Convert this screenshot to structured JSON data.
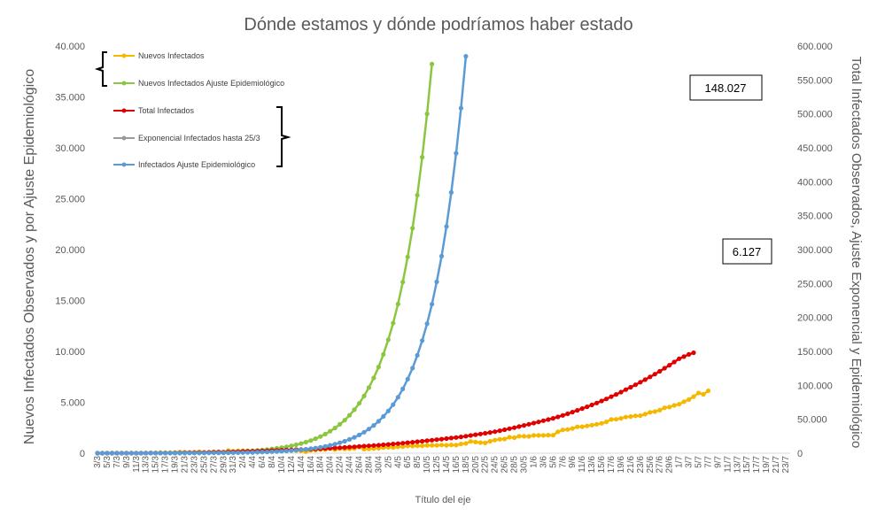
{
  "chart_data": {
    "type": "line",
    "title": "Dónde estamos y dónde podríamos haber estado",
    "xlabel": "Título del eje",
    "ylabel_left": "Nuevos Infectados Observados y por Ajuste Epidemiológico",
    "ylabel_right": "Total Infectados Observados, Ajuste Exponencial y Epidemiológico",
    "ylim_left": [
      0,
      40000
    ],
    "ylim_right": [
      0,
      600000
    ],
    "left_ticks": [
      "0",
      "5.000",
      "10.000",
      "15.000",
      "20.000",
      "25.000",
      "30.000",
      "35.000",
      "40.000"
    ],
    "right_ticks": [
      "0",
      "50.000",
      "100.000",
      "150.000",
      "200.000",
      "250.000",
      "300.000",
      "350.000",
      "400.000",
      "450.000",
      "500.000",
      "550.000",
      "600.000"
    ],
    "x_tick_labels": [
      "3/3",
      "5/3",
      "7/3",
      "9/3",
      "11/3",
      "13/3",
      "15/3",
      "17/3",
      "19/3",
      "21/3",
      "23/3",
      "25/3",
      "27/3",
      "29/3",
      "31/3",
      "2/4",
      "4/4",
      "6/4",
      "8/4",
      "10/4",
      "12/4",
      "14/4",
      "16/4",
      "18/4",
      "20/4",
      "22/4",
      "24/4",
      "26/4",
      "28/4",
      "30/4",
      "2/5",
      "4/5",
      "6/5",
      "8/5",
      "10/5",
      "12/5",
      "14/5",
      "16/5",
      "18/5",
      "20/5",
      "22/5",
      "24/5",
      "26/5",
      "28/5",
      "30/5",
      "1/6",
      "3/6",
      "5/6",
      "7/6",
      "9/6",
      "11/6",
      "13/6",
      "15/6",
      "17/6",
      "19/6",
      "21/6",
      "23/6",
      "25/6",
      "27/6",
      "29/6",
      "1/7",
      "3/7",
      "5/7",
      "7/7",
      "9/7",
      "11/7",
      "13/7",
      "15/7",
      "17/7",
      "19/7",
      "21/7",
      "23/7"
    ],
    "grid": false,
    "legend_groups": [
      {
        "axis": "left",
        "entries": [
          "Nuevos Infectados",
          "Nuevos Infectados Ajuste Epidemiológico"
        ]
      },
      {
        "axis": "right",
        "entries": [
          "Total Infectados",
          "Exponencial Infectados hasta 25/3",
          "Infectados Ajuste Epidemiológico"
        ]
      }
    ],
    "annotations": [
      {
        "text": "148.027",
        "target": "Total Infectados",
        "x": "23/7"
      },
      {
        "text": "6.127",
        "target": "Nuevos Infectados",
        "x": "23/7"
      }
    ],
    "series": [
      {
        "name": "Nuevos Infectados",
        "axis": "left",
        "color": "#f5b800",
        "start_index": 0,
        "values": [
          2,
          1,
          5,
          2,
          3,
          5,
          10,
          12,
          4,
          14,
          20,
          35,
          31,
          67,
          49,
          56,
          79,
          116,
          102,
          87,
          101,
          146,
          88,
          107,
          150,
          148,
          90,
          266,
          180,
          245,
          251,
          226,
          225,
          203,
          166,
          253,
          347,
          222,
          308,
          243,
          276,
          255,
          229,
          147,
          276,
          298,
          365,
          357,
          448,
          355,
          450,
          408,
          436,
          462,
          589,
          399,
          426,
          467,
          491,
          557,
          583,
          562,
          626,
          632,
          711,
          706,
          723,
          728,
          767,
          778,
          762,
          811,
          775,
          810,
          789,
          905,
          955,
          1158,
          1096,
          1045,
          1010,
          1172,
          1289,
          1366,
          1393,
          1569,
          1525,
          1669,
          1665,
          1656,
          1749,
          1744,
          1744,
          1771,
          1761,
          2101,
          2283,
          2331,
          2430,
          2595,
          2599,
          2678,
          2753,
          2846,
          2929,
          3079,
          3311,
          3332,
          3422,
          3549,
          3602,
          3666,
          3684,
          3832,
          4015,
          4084,
          4222,
          4457,
          4527,
          4695,
          4809,
          5065,
          5267,
          5555,
          5916,
          5779,
          6127
        ]
      },
      {
        "name": "Nuevos Infectados Ajuste Epidemiológico",
        "axis": "left",
        "color": "#8cc63f",
        "start_index": 0,
        "growth": 0.137,
        "base": 3
      },
      {
        "name": "Total Infectados",
        "axis": "right",
        "color": "#e00000",
        "start_index": 0,
        "values": [
          2,
          3,
          8,
          10,
          13,
          18,
          28,
          40,
          44,
          58,
          78,
          113,
          144,
          211,
          260,
          316,
          395,
          511,
          613,
          700,
          801,
          947,
          1035,
          1142,
          1292,
          1440,
          1530,
          1796,
          1976,
          2221,
          2472,
          2698,
          2923,
          3126,
          3292,
          3545,
          3892,
          4114,
          4422,
          4665,
          4941,
          5196,
          5425,
          5572,
          5848,
          6146,
          6511,
          6868,
          7316,
          7671,
          8121,
          8529,
          8965,
          9427,
          10016,
          10415,
          10841,
          11308,
          11799,
          12356,
          12939,
          13501,
          14127,
          14759,
          15470,
          16176,
          16899,
          17627,
          18394,
          19172,
          19934,
          20745,
          21520,
          22330,
          23119,
          24024,
          24979,
          26137,
          27233,
          28278,
          29288,
          30460,
          31749,
          33115,
          34508,
          36077,
          37602,
          39271,
          40936,
          42592,
          44341,
          46085,
          47829,
          49600,
          51361,
          53462,
          55745,
          58076,
          60506,
          63101,
          65700,
          68378,
          71131,
          73977,
          76906,
          79985,
          83296,
          86628,
          90050,
          93599,
          97201,
          100867,
          104551,
          108383,
          112398,
          116482,
          120704,
          125161,
          129688,
          134383,
          139192,
          142257,
          145524,
          148027
        ]
      },
      {
        "name": "Exponencial Infectados hasta 25/3",
        "axis": "right",
        "color": "#9a9a9a",
        "start_index": 0,
        "end_index": 52
      },
      {
        "name": "Infectados Ajuste Epidemiológico",
        "axis": "right",
        "color": "#5b9bd5",
        "start_index": 0,
        "growth": 0.14,
        "base": 14
      }
    ]
  }
}
